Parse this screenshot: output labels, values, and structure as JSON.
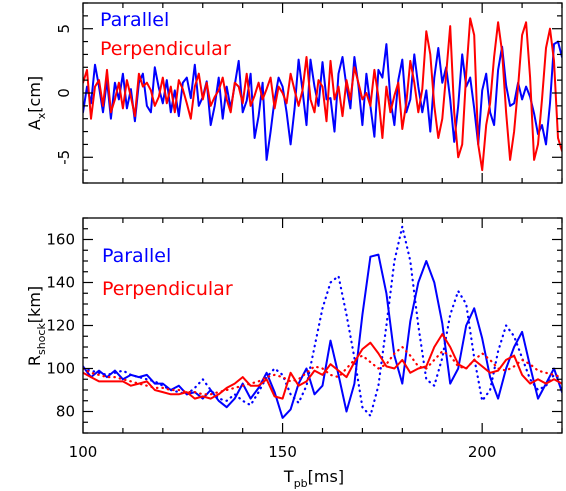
{
  "chart_data": [
    {
      "type": "line",
      "panel": "top",
      "title": "",
      "ylabel": "A",
      "ylabel_sub": "x",
      "ylabel_unit": "[cm]",
      "xlim": [
        100,
        220
      ],
      "ylim": [
        -7,
        7
      ],
      "yticks": [
        -5,
        0,
        5
      ],
      "xticks": [
        100,
        150,
        200
      ],
      "show_xticklabels": false,
      "legend_position": "top-left",
      "series": [
        {
          "name": "Parallel",
          "color": "#0000ff",
          "dash": "solid",
          "x": [
            100,
            101,
            102,
            103,
            104,
            105,
            106,
            107,
            108,
            109,
            110,
            111,
            112,
            113,
            114,
            115,
            116,
            117,
            118,
            119,
            120,
            121,
            122,
            123,
            124,
            125,
            126,
            127,
            128,
            129,
            130,
            131,
            132,
            133,
            134,
            135,
            136,
            137,
            138,
            139,
            140,
            141,
            142,
            143,
            144,
            145,
            146,
            147,
            148,
            149,
            150,
            151,
            152,
            153,
            154,
            155,
            156,
            157,
            158,
            159,
            160,
            161,
            162,
            163,
            164,
            165,
            166,
            167,
            168,
            169,
            170,
            171,
            172,
            173,
            174,
            175,
            176,
            177,
            178,
            179,
            180,
            181,
            182,
            183,
            184,
            185,
            186,
            187,
            188,
            189,
            190,
            191,
            192,
            193,
            194,
            195,
            196,
            197,
            198,
            199,
            200,
            201,
            202,
            203,
            204,
            205,
            206,
            207,
            208,
            209,
            210,
            211,
            212,
            213,
            214,
            215,
            216,
            217,
            218,
            219,
            220
          ],
          "y": [
            -1.5,
            0.5,
            -0.8,
            2.2,
            0.5,
            -1.5,
            1.0,
            -2.0,
            0.8,
            -0.5,
            1.5,
            -1.2,
            0.3,
            -2.2,
            0.8,
            1.5,
            -1.0,
            -1.5,
            2.0,
            0.4,
            -0.8,
            1.0,
            -1.5,
            0.2,
            -1.8,
            0.8,
            1.2,
            -0.4,
            2.2,
            -1.0,
            -0.3,
            0.9,
            -2.5,
            -1.0,
            1.2,
            -2.0,
            0.5,
            -1.2,
            0.6,
            2.5,
            -1.5,
            -0.6,
            1.5,
            -3.5,
            -1.8,
            0.8,
            -5.2,
            -3.0,
            -0.5,
            1.2,
            0.5,
            -1.5,
            -4.0,
            -1.2,
            2.6,
            0.2,
            -2.5,
            2.6,
            0.5,
            -1.0,
            2.4,
            -0.5,
            -0.4,
            -3.0,
            1.5,
            2.8,
            0.5,
            -1.2,
            2.8,
            0.6,
            -2.5,
            1.5,
            -1.0,
            -3.4,
            1.8,
            1.2,
            3.8,
            -0.5,
            -2.5,
            1.0,
            2.6,
            -1.5,
            -0.5,
            3.0,
            0.5,
            -1.5,
            0.2,
            -3.0,
            1.2,
            3.5,
            0.8,
            2.0,
            -0.5,
            -3.8,
            -1.0,
            3.0,
            0.5,
            1.2,
            -1.2,
            -4.0,
            0.2,
            1.5,
            -1.5,
            -2.5,
            1.8,
            3.6,
            0.6,
            -1.0,
            -0.8,
            0.8,
            -0.5,
            0.5,
            -0.3,
            -1.6,
            -3.2,
            -2.5,
            -4.0,
            -0.8,
            3.8,
            4.0,
            2.8
          ]
        },
        {
          "name": "Perpendicular",
          "color": "#ff0000",
          "dash": "solid",
          "x": [
            100,
            101,
            102,
            103,
            104,
            105,
            106,
            107,
            108,
            109,
            110,
            111,
            112,
            113,
            114,
            115,
            116,
            117,
            118,
            119,
            120,
            121,
            122,
            123,
            124,
            125,
            126,
            127,
            128,
            129,
            130,
            131,
            132,
            133,
            134,
            135,
            136,
            137,
            138,
            139,
            140,
            141,
            142,
            143,
            144,
            145,
            146,
            147,
            148,
            149,
            150,
            151,
            152,
            153,
            154,
            155,
            156,
            157,
            158,
            159,
            160,
            161,
            162,
            163,
            164,
            165,
            166,
            167,
            168,
            169,
            170,
            171,
            172,
            173,
            174,
            175,
            176,
            177,
            178,
            179,
            180,
            181,
            182,
            183,
            184,
            185,
            186,
            187,
            188,
            189,
            190,
            191,
            192,
            193,
            194,
            195,
            196,
            197,
            198,
            199,
            200,
            201,
            202,
            203,
            204,
            205,
            206,
            207,
            208,
            209,
            210,
            211,
            212,
            213,
            214,
            215,
            216,
            217,
            218,
            219,
            220
          ],
          "y": [
            0.8,
            1.8,
            -2.0,
            0.5,
            1.0,
            -1.0,
            1.8,
            -1.5,
            -0.5,
            0.8,
            -1.2,
            1.0,
            -0.3,
            -1.8,
            1.5,
            0.5,
            0.8,
            0.2,
            -1.0,
            -0.3,
            1.2,
            -0.8,
            0.5,
            -1.5,
            1.0,
            0.3,
            -0.8,
            -2.0,
            0.5,
            1.5,
            -0.5,
            0.8,
            -1.0,
            -0.3,
            0.2,
            1.2,
            -0.5,
            -1.5,
            0.8,
            0.5,
            -0.8,
            1.5,
            -1.0,
            -0.2,
            0.8,
            -0.5,
            0.3,
            1.2,
            -1.2,
            0.5,
            0.0,
            -0.8,
            1.5,
            0.2,
            -1.0,
            0.2,
            2.8,
            -0.5,
            -1.5,
            1.0,
            0.5,
            -2.2,
            2.5,
            -0.5,
            0.5,
            -1.8,
            1.0,
            -0.5,
            2.0,
            0.8,
            -0.5,
            0.0,
            -1.0,
            1.8,
            -0.3,
            -3.5,
            0.5,
            -1.5,
            -0.2,
            0.8,
            -2.8,
            -0.8,
            2.5,
            0.8,
            -1.5,
            0.3,
            4.8,
            3.0,
            -1.0,
            -3.5,
            -2.0,
            1.5,
            5.2,
            -1.5,
            -5.0,
            -4.0,
            1.5,
            5.8,
            4.5,
            -4.0,
            -6.0,
            -2.5,
            -0.8,
            2.8,
            5.5,
            3.2,
            -1.5,
            -5.2,
            -3.0,
            0.5,
            4.5,
            5.5,
            1.2,
            -5.2,
            -4.0,
            -0.5,
            3.5,
            5.0,
            2.5,
            -3.5,
            -4.5
          ]
        }
      ]
    },
    {
      "type": "line",
      "panel": "bottom",
      "title": "",
      "ylabel": "R",
      "ylabel_sub": "shock",
      "ylabel_unit": "[km]",
      "xlabel": "T",
      "xlabel_sub": "pb",
      "xlabel_unit": "[ms]",
      "xlim": [
        100,
        220
      ],
      "ylim": [
        70,
        170
      ],
      "yticks": [
        80,
        100,
        120,
        140,
        160
      ],
      "xticks": [
        100,
        150,
        200
      ],
      "legend_position": "top-left",
      "series": [
        {
          "name": "Parallel",
          "color": "#0000ff",
          "dash": "solid",
          "x": [
            100,
            102,
            104,
            106,
            108,
            110,
            112,
            114,
            116,
            118,
            120,
            122,
            124,
            126,
            128,
            130,
            132,
            134,
            136,
            138,
            140,
            142,
            144,
            146,
            148,
            150,
            152,
            154,
            156,
            158,
            160,
            162,
            164,
            166,
            168,
            170,
            172,
            174,
            176,
            178,
            180,
            182,
            184,
            186,
            188,
            190,
            192,
            194,
            196,
            198,
            200,
            202,
            204,
            206,
            208,
            210,
            212,
            214,
            216,
            218,
            220
          ],
          "y": [
            101,
            96,
            99,
            96,
            99,
            95,
            97,
            96,
            97,
            93,
            93,
            90,
            92,
            88,
            89,
            86,
            90,
            85,
            82,
            86,
            93,
            86,
            91,
            98,
            89,
            77,
            81,
            93,
            100,
            88,
            92,
            113,
            97,
            80,
            93,
            125,
            152,
            153,
            135,
            106,
            93,
            122,
            140,
            150,
            140,
            121,
            93,
            100,
            120,
            128,
            114,
            96,
            86,
            100,
            110,
            117,
            101,
            86,
            93,
            100,
            89
          ]
        },
        {
          "name": "",
          "color": "#0000ff",
          "dash": "dotted",
          "x": [
            100,
            102,
            104,
            106,
            108,
            110,
            112,
            114,
            116,
            118,
            120,
            122,
            124,
            126,
            128,
            130,
            132,
            134,
            136,
            138,
            140,
            142,
            144,
            146,
            148,
            150,
            152,
            154,
            156,
            158,
            160,
            162,
            164,
            166,
            168,
            170,
            172,
            174,
            176,
            178,
            180,
            182,
            184,
            186,
            188,
            190,
            192,
            194,
            196,
            198,
            200,
            202,
            204,
            206,
            208,
            210,
            212,
            214,
            216,
            218,
            220
          ],
          "y": [
            100,
            99,
            98,
            97,
            98,
            99,
            97,
            96,
            95,
            94,
            92,
            90,
            89,
            88,
            91,
            95,
            90,
            86,
            85,
            88,
            85,
            83,
            89,
            96,
            100,
            97,
            88,
            84,
            92,
            110,
            128,
            140,
            143,
            125,
            105,
            82,
            78,
            92,
            120,
            150,
            166,
            150,
            120,
            95,
            92,
            105,
            125,
            136,
            130,
            105,
            85,
            90,
            108,
            120,
            115,
            105,
            95,
            90,
            92,
            97,
            95
          ]
        },
        {
          "name": "Perpendicular",
          "color": "#ff0000",
          "dash": "solid",
          "x": [
            100,
            102,
            104,
            106,
            108,
            110,
            112,
            114,
            116,
            118,
            120,
            122,
            124,
            126,
            128,
            130,
            132,
            134,
            136,
            138,
            140,
            142,
            144,
            146,
            148,
            150,
            152,
            154,
            156,
            158,
            160,
            162,
            164,
            166,
            168,
            170,
            172,
            174,
            176,
            178,
            180,
            182,
            184,
            186,
            188,
            190,
            192,
            194,
            196,
            198,
            200,
            202,
            204,
            206,
            208,
            210,
            212,
            214,
            216,
            218,
            220
          ],
          "y": [
            98,
            96,
            94,
            94,
            94,
            94,
            92,
            93,
            94,
            90,
            89,
            88,
            88,
            89,
            86,
            87,
            86,
            88,
            91,
            93,
            96,
            92,
            92,
            95,
            87,
            86,
            98,
            92,
            94,
            99,
            97,
            102,
            99,
            96,
            103,
            109,
            112,
            107,
            101,
            100,
            104,
            98,
            100,
            101,
            110,
            116,
            110,
            102,
            100,
            104,
            101,
            98,
            99,
            104,
            106,
            97,
            93,
            95,
            93,
            95,
            93
          ]
        },
        {
          "name": "",
          "color": "#ff0000",
          "dash": "dotted",
          "x": [
            100,
            102,
            104,
            106,
            108,
            110,
            112,
            114,
            116,
            118,
            120,
            122,
            124,
            126,
            128,
            130,
            132,
            134,
            136,
            138,
            140,
            142,
            144,
            146,
            148,
            150,
            152,
            154,
            156,
            158,
            160,
            162,
            164,
            166,
            168,
            170,
            172,
            174,
            176,
            178,
            180,
            182,
            184,
            186,
            188,
            190,
            192,
            194,
            196,
            198,
            200,
            202,
            204,
            206,
            208,
            210,
            212,
            214,
            216,
            218,
            220
          ],
          "y": [
            100,
            98,
            97,
            96,
            96,
            95,
            94,
            93,
            92,
            91,
            91,
            90,
            90,
            89,
            89,
            88,
            88,
            89,
            90,
            91,
            92,
            93,
            94,
            96,
            97,
            96,
            94,
            95,
            98,
            101,
            100,
            97,
            96,
            100,
            104,
            106,
            103,
            100,
            102,
            107,
            110,
            106,
            101,
            100,
            104,
            108,
            106,
            101,
            100,
            104,
            107,
            104,
            100,
            99,
            101,
            104,
            102,
            99,
            98,
            97,
            96
          ]
        }
      ]
    }
  ]
}
